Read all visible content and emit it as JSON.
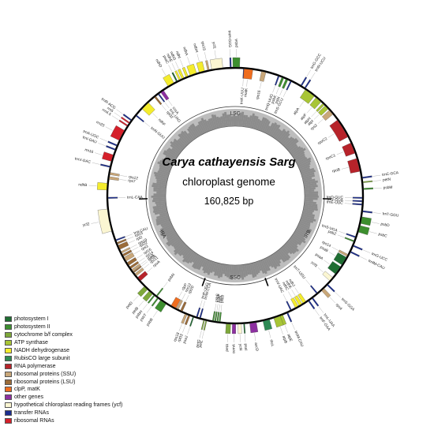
{
  "title": {
    "species": "Carya cathayensis Sarg",
    "kind": "chloroplast genome",
    "size": "160,825 bp"
  },
  "regions": [
    {
      "label": "LSC",
      "angle": 0
    },
    {
      "label": "IRB",
      "angle": 118
    },
    {
      "label": "SSC",
      "angle": 180
    },
    {
      "label": "IRA",
      "angle": 242
    }
  ],
  "legend": [
    {
      "label": "photosystem I",
      "color": "#1f6e32"
    },
    {
      "label": "photosystem II",
      "color": "#3d8f2f"
    },
    {
      "label": "cytochrome b/f complex",
      "color": "#7ea83a"
    },
    {
      "label": "ATP synthase",
      "color": "#a8c535"
    },
    {
      "label": "NADH dehydrogenase",
      "color": "#f4ec2d"
    },
    {
      "label": "RubisCO large subunit",
      "color": "#2e8a55"
    },
    {
      "label": "RNA polymerase",
      "color": "#b7232a"
    },
    {
      "label": "ribosomal proteins (SSU)",
      "color": "#c9a779"
    },
    {
      "label": "ribosomal proteins (LSU)",
      "color": "#9b6c3a"
    },
    {
      "label": "clpP, matK",
      "color": "#ef6d1f"
    },
    {
      "label": "other genes",
      "color": "#8d2fa0"
    },
    {
      "label": "hypothetical chloroplast reading frames (ycf)",
      "color": "#fbf6d2"
    },
    {
      "label": "transfer RNAs",
      "color": "#1b2d8f"
    },
    {
      "label": "ribosomal RNAs",
      "color": "#d5202a"
    }
  ],
  "genes": [
    {
      "name": "psbA",
      "angle": 0.5,
      "span": 3,
      "side": "out",
      "color": "#3d8f2f"
    },
    {
      "name": "trnH-GUG",
      "angle": 358,
      "span": 0.6,
      "side": "out",
      "color": "#1b2d8f"
    },
    {
      "name": "trnK-UUU",
      "angle": 4,
      "span": 0.6,
      "side": "in",
      "color": "#1b2d8f"
    },
    {
      "name": "matK",
      "angle": 6,
      "span": 4,
      "side": "in",
      "color": "#ef6d1f"
    },
    {
      "name": "rps16",
      "angle": 13,
      "span": 2,
      "side": "in",
      "color": "#c9a779"
    },
    {
      "name": "trnQ-UUG",
      "angle": 20,
      "span": 0.6,
      "side": "in",
      "color": "#1b2d8f"
    },
    {
      "name": "psbK",
      "angle": 22,
      "span": 1,
      "side": "in",
      "color": "#3d8f2f"
    },
    {
      "name": "psbI",
      "angle": 24,
      "span": 1,
      "side": "in",
      "color": "#3d8f2f"
    },
    {
      "name": "trnS-GCU",
      "angle": 26,
      "span": 0.6,
      "side": "in",
      "color": "#1b2d8f"
    },
    {
      "name": "trnG-GCC",
      "angle": 31,
      "span": 0.6,
      "side": "out",
      "color": "#1b2d8f"
    },
    {
      "name": "trnR-UCU",
      "angle": 33,
      "span": 0.6,
      "side": "out",
      "color": "#1b2d8f"
    },
    {
      "name": "atpA",
      "angle": 36,
      "span": 5,
      "side": "in",
      "color": "#a8c535"
    },
    {
      "name": "atpF",
      "angle": 41,
      "span": 3,
      "side": "in",
      "color": "#a8c535"
    },
    {
      "name": "atpH",
      "angle": 44,
      "span": 1,
      "side": "in",
      "color": "#a8c535"
    },
    {
      "name": "atpI",
      "angle": 46,
      "span": 2,
      "side": "in",
      "color": "#a8c535"
    },
    {
      "name": "rps2",
      "angle": 49,
      "span": 2.5,
      "side": "in",
      "color": "#c9a779"
    },
    {
      "name": "rpoC2",
      "angle": 58,
      "span": 9,
      "side": "in",
      "color": "#b7232a"
    },
    {
      "name": "rpoC1",
      "angle": 68,
      "span": 5,
      "side": "in",
      "color": "#b7232a"
    },
    {
      "name": "rpoB",
      "angle": 76,
      "span": 6,
      "side": "in",
      "color": "#b7232a"
    },
    {
      "name": "trnC-GCA",
      "angle": 82,
      "span": 0.6,
      "side": "out",
      "color": "#1b2d8f"
    },
    {
      "name": "petN",
      "angle": 84,
      "span": 0.5,
      "side": "out",
      "color": "#7ea83a"
    },
    {
      "name": "psbM",
      "angle": 87,
      "span": 0.6,
      "side": "out",
      "color": "#3d8f2f"
    },
    {
      "name": "trnD-GUC",
      "angle": 91,
      "span": 0.6,
      "side": "in",
      "color": "#1b2d8f"
    },
    {
      "name": "trnY-GUA",
      "angle": 92.5,
      "span": 0.6,
      "side": "in",
      "color": "#1b2d8f"
    },
    {
      "name": "trnE-UUC",
      "angle": 94,
      "span": 0.6,
      "side": "in",
      "color": "#1b2d8f"
    },
    {
      "name": "trnT-GGU",
      "angle": 97,
      "span": 0.6,
      "side": "out",
      "color": "#1b2d8f"
    },
    {
      "name": "psbD",
      "angle": 101,
      "span": 3,
      "side": "out",
      "color": "#3d8f2f"
    },
    {
      "name": "psbC",
      "angle": 105,
      "span": 3,
      "side": "out",
      "color": "#3d8f2f"
    },
    {
      "name": "trnS-UGA",
      "angle": 109,
      "span": 0.6,
      "side": "in",
      "color": "#1b2d8f"
    },
    {
      "name": "psbZ",
      "angle": 111,
      "span": 0.6,
      "side": "in",
      "color": "#3d8f2f"
    },
    {
      "name": "trnG-UCC",
      "angle": 113,
      "span": 0.6,
      "side": "out",
      "color": "#1b2d8f"
    },
    {
      "name": "trnfM-CAU",
      "angle": 116,
      "span": 0.6,
      "side": "out",
      "color": "#1b2d8f"
    },
    {
      "name": "rps14",
      "angle": 118,
      "span": 1,
      "side": "in",
      "color": "#c9a779"
    },
    {
      "name": "psaB",
      "angle": 121,
      "span": 4,
      "side": "in",
      "color": "#1f6e32"
    },
    {
      "name": "psaA",
      "angle": 126,
      "span": 4,
      "side": "in",
      "color": "#1f6e32"
    },
    {
      "name": "ycf3",
      "angle": 131,
      "span": 2,
      "side": "in",
      "color": "#fbf6d2"
    },
    {
      "name": "trnS-GGA",
      "angle": 134,
      "span": 0.6,
      "side": "out",
      "color": "#1b2d8f"
    },
    {
      "name": "rps4",
      "angle": 137,
      "span": 1.5,
      "side": "out",
      "color": "#c9a779"
    },
    {
      "name": "trnT-UGU",
      "angle": 140,
      "span": 0.6,
      "side": "in",
      "color": "#1b2d8f"
    },
    {
      "name": "trnL-UAA",
      "angle": 143,
      "span": 0.6,
      "side": "out",
      "color": "#1b2d8f"
    },
    {
      "name": "trnF-GAA",
      "angle": 145,
      "span": 0.6,
      "side": "out",
      "color": "#1b2d8f"
    },
    {
      "name": "ndhJ",
      "angle": 147,
      "span": 1.5,
      "side": "in",
      "color": "#f4ec2d"
    },
    {
      "name": "ndhK",
      "angle": 149,
      "span": 1.5,
      "side": "in",
      "color": "#f4ec2d"
    },
    {
      "name": "ndhC",
      "angle": 151,
      "span": 1.5,
      "side": "in",
      "color": "#f4ec2d"
    },
    {
      "name": "trnV-UAC",
      "angle": 154,
      "span": 0.6,
      "side": "in",
      "color": "#1b2d8f"
    },
    {
      "name": "trnM-CAU",
      "angle": 156,
      "span": 0.6,
      "side": "out",
      "color": "#1b2d8f"
    },
    {
      "name": "atpE",
      "angle": 159,
      "span": 1.5,
      "side": "out",
      "color": "#a8c535"
    },
    {
      "name": "atpB",
      "angle": 161,
      "span": 3,
      "side": "out",
      "color": "#a8c535"
    },
    {
      "name": "rbcL",
      "angle": 166,
      "span": 3,
      "side": "out",
      "color": "#2e8a55"
    },
    {
      "name": "accD",
      "angle": 172,
      "span": 3,
      "side": "out",
      "color": "#8d2fa0"
    },
    {
      "name": "psaI",
      "angle": 176,
      "span": 0.5,
      "side": "out",
      "color": "#1f6e32"
    },
    {
      "name": "ycf4",
      "angle": 178,
      "span": 1.5,
      "side": "out",
      "color": "#fbf6d2"
    },
    {
      "name": "cemA",
      "angle": 180.5,
      "span": 1.5,
      "side": "out",
      "color": "#8d2fa0"
    },
    {
      "name": "petA",
      "angle": 183,
      "span": 2,
      "side": "out",
      "color": "#7ea83a"
    },
    {
      "name": "psbJ",
      "angle": 187,
      "span": 0.6,
      "side": "in",
      "color": "#3d8f2f"
    },
    {
      "name": "psbL",
      "angle": 188,
      "span": 0.6,
      "side": "in",
      "color": "#3d8f2f"
    },
    {
      "name": "psbF",
      "angle": 189,
      "span": 0.6,
      "side": "in",
      "color": "#3d8f2f"
    },
    {
      "name": "psbE",
      "angle": 190,
      "span": 0.6,
      "side": "in",
      "color": "#3d8f2f"
    },
    {
      "name": "petL",
      "angle": 193,
      "span": 0.5,
      "side": "out",
      "color": "#7ea83a"
    },
    {
      "name": "petG",
      "angle": 194,
      "span": 0.5,
      "side": "out",
      "color": "#7ea83a"
    },
    {
      "name": "trnW-CCA",
      "angle": 196,
      "span": 0.6,
      "side": "in",
      "color": "#1b2d8f"
    },
    {
      "name": "trnP-UGG",
      "angle": 197.5,
      "span": 0.6,
      "side": "in",
      "color": "#1b2d8f"
    },
    {
      "name": "psaJ",
      "angle": 199,
      "span": 0.5,
      "side": "out",
      "color": "#1f6e32"
    },
    {
      "name": "rpl33",
      "angle": 201,
      "span": 0.8,
      "side": "out",
      "color": "#9b6c3a"
    },
    {
      "name": "rps18",
      "angle": 202.5,
      "span": 1,
      "side": "out",
      "color": "#c9a779"
    },
    {
      "name": "rpl20",
      "angle": 205,
      "span": 1,
      "side": "in",
      "color": "#9b6c3a"
    },
    {
      "name": "rps12",
      "angle": 207,
      "span": 1,
      "side": "in",
      "color": "#c9a779"
    },
    {
      "name": "clpP",
      "angle": 209,
      "span": 2.5,
      "side": "in",
      "color": "#ef6d1f"
    },
    {
      "name": "psbB",
      "angle": 214,
      "span": 3,
      "side": "out",
      "color": "#3d8f2f"
    },
    {
      "name": "psbT",
      "angle": 217,
      "span": 0.6,
      "side": "out",
      "color": "#3d8f2f"
    },
    {
      "name": "psbN",
      "angle": 218,
      "span": 0.6,
      "side": "in",
      "color": "#3d8f2f"
    },
    {
      "name": "psbH",
      "angle": 219,
      "span": 0.6,
      "side": "out",
      "color": "#3d8f2f"
    },
    {
      "name": "petB",
      "angle": 221,
      "span": 2,
      "side": "out",
      "color": "#7ea83a"
    },
    {
      "name": "petD",
      "angle": 224,
      "span": 2,
      "side": "out",
      "color": "#7ea83a"
    },
    {
      "name": "rpoA",
      "angle": 229,
      "span": 2,
      "side": "in",
      "color": "#b7232a"
    },
    {
      "name": "rps11",
      "angle": 231.5,
      "span": 1.2,
      "side": "in",
      "color": "#c9a779"
    },
    {
      "name": "rpl36",
      "angle": 233,
      "span": 0.6,
      "side": "in",
      "color": "#9b6c3a"
    },
    {
      "name": "rps8",
      "angle": 234,
      "span": 1,
      "side": "in",
      "color": "#c9a779"
    },
    {
      "name": "rpl14",
      "angle": 235.5,
      "span": 1,
      "side": "in",
      "color": "#9b6c3a"
    },
    {
      "name": "rpl16",
      "angle": 237.5,
      "span": 1.5,
      "side": "in",
      "color": "#9b6c3a"
    },
    {
      "name": "rps3",
      "angle": 240,
      "span": 2,
      "side": "in",
      "color": "#c9a779"
    },
    {
      "name": "rpl22",
      "angle": 242,
      "span": 1,
      "side": "in",
      "color": "#9b6c3a"
    },
    {
      "name": "rps19",
      "angle": 243.5,
      "span": 0.8,
      "side": "in",
      "color": "#c9a779"
    },
    {
      "name": "rpl2",
      "angle": 246,
      "span": 2,
      "side": "in",
      "color": "#9b6c3a"
    },
    {
      "name": "rpl23",
      "angle": 248,
      "span": 0.8,
      "side": "in",
      "color": "#9b6c3a"
    },
    {
      "name": "trnI-CAU",
      "angle": 249.5,
      "span": 0.6,
      "side": "in",
      "color": "#1b2d8f"
    },
    {
      "name": "ycf2",
      "angle": 259,
      "span": 10,
      "side": "out",
      "color": "#fbf6d2"
    },
    {
      "name": "trnL-CAA",
      "angle": 269,
      "span": 0.6,
      "side": "in",
      "color": "#1b2d8f"
    },
    {
      "name": "ndhB",
      "angle": 274,
      "span": 3,
      "side": "out",
      "color": "#f4ec2d"
    },
    {
      "name": "rps7",
      "angle": 278,
      "span": 1.2,
      "side": "in",
      "color": "#c9a779"
    },
    {
      "name": "rps12",
      "angle": 280,
      "span": 1,
      "side": "in",
      "color": "#c9a779"
    },
    {
      "name": "trnV-GAC",
      "angle": 283,
      "span": 0.6,
      "side": "out",
      "color": "#1b2d8f"
    },
    {
      "name": "rrn16",
      "angle": 287,
      "span": 3,
      "side": "out",
      "color": "#d5202a"
    },
    {
      "name": "trnI-GAU",
      "angle": 291,
      "span": 0.6,
      "side": "out",
      "color": "#1b2d8f"
    },
    {
      "name": "trnA-UGC",
      "angle": 293,
      "span": 0.6,
      "side": "out",
      "color": "#1b2d8f"
    },
    {
      "name": "rrn23",
      "angle": 298,
      "span": 5,
      "side": "out",
      "color": "#d5202a"
    },
    {
      "name": "rrn4.5",
      "angle": 303,
      "span": 0.6,
      "side": "out",
      "color": "#d5202a"
    },
    {
      "name": "rrn5",
      "angle": 304.5,
      "span": 0.6,
      "side": "out",
      "color": "#d5202a"
    },
    {
      "name": "trnR-ACG",
      "angle": 306,
      "span": 0.6,
      "side": "out",
      "color": "#1b2d8f"
    },
    {
      "name": "trnN-GUU",
      "angle": 309,
      "span": 0.6,
      "side": "in",
      "color": "#1b2d8f"
    },
    {
      "name": "ndhF",
      "angle": 315,
      "span": 4,
      "side": "in",
      "color": "#f4ec2d"
    },
    {
      "name": "rpl32",
      "angle": 321,
      "span": 0.8,
      "side": "in",
      "color": "#9b6c3a"
    },
    {
      "name": "trnL-UAG",
      "angle": 323,
      "span": 0.6,
      "side": "in",
      "color": "#1b2d8f"
    },
    {
      "name": "ccsA",
      "angle": 325,
      "span": 1.5,
      "side": "in",
      "color": "#8d2fa0"
    },
    {
      "name": "ndhD",
      "angle": 330,
      "span": 3,
      "side": "out",
      "color": "#f4ec2d"
    },
    {
      "name": "psaC",
      "angle": 333,
      "span": 0.6,
      "side": "out",
      "color": "#1f6e32"
    },
    {
      "name": "ndhE",
      "angle": 334.5,
      "span": 0.8,
      "side": "out",
      "color": "#f4ec2d"
    },
    {
      "name": "ndhG",
      "angle": 336,
      "span": 1,
      "side": "out",
      "color": "#f4ec2d"
    },
    {
      "name": "ndhI",
      "angle": 338,
      "span": 1,
      "side": "out",
      "color": "#f4ec2d"
    },
    {
      "name": "ndhA",
      "angle": 341,
      "span": 3,
      "side": "out",
      "color": "#f4ec2d"
    },
    {
      "name": "ndhH",
      "angle": 345,
      "span": 2.5,
      "side": "out",
      "color": "#f4ec2d"
    },
    {
      "name": "rps15",
      "angle": 348,
      "span": 0.8,
      "side": "out",
      "color": "#c9a779"
    },
    {
      "name": "ycf1",
      "angle": 352,
      "span": 5,
      "side": "out",
      "color": "#fbf6d2"
    }
  ]
}
